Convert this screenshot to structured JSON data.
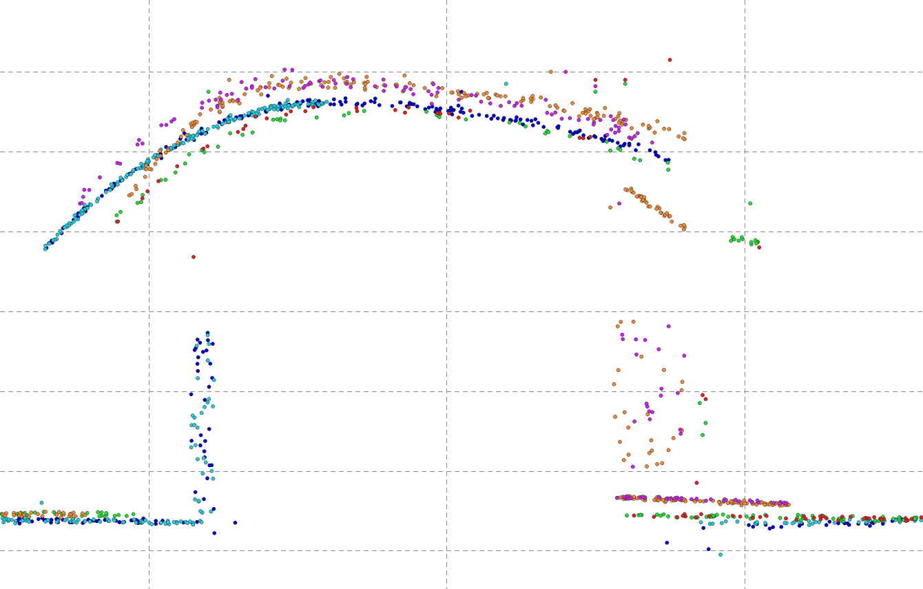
{
  "chart_data": {
    "type": "scatter",
    "title": "",
    "xlabel": "",
    "ylabel": "",
    "grid": true,
    "legend": "none",
    "xlim": [
      -1.0,
      2.1
    ],
    "ylim": [
      -0.48,
      6.9
    ],
    "x_gridlines": [
      -0.5,
      0.5,
      1.5
    ],
    "y_gridlines": [
      0,
      1,
      2,
      3,
      4,
      5,
      6
    ],
    "series": [
      {
        "color": "#0000cc",
        "clusters": [
          {
            "kind": "band",
            "x": [
              -1.0,
              -0.32
            ],
            "y_start": 0.38,
            "y_end": 0.36,
            "spread": 0.05,
            "count": 50
          },
          {
            "kind": "vertical",
            "x": [
              -0.36,
              -0.28
            ],
            "y": [
              0.45,
              2.75
            ],
            "count": 30
          },
          {
            "kind": "curve",
            "x": [
              -0.85,
              1.25
            ],
            "peak_x": 0.1,
            "peak_y": 5.6,
            "y_left": 3.78,
            "y_right": 4.9,
            "spread": 0.06,
            "count": 180
          },
          {
            "kind": "band",
            "x": [
              1.35,
              2.1
            ],
            "y_start": 0.28,
            "y_end": 0.36,
            "spread": 0.06,
            "count": 25
          },
          {
            "kind": "outliers",
            "points": [
              [
                -0.21,
                0.35
              ],
              [
                -0.28,
                0.22
              ],
              [
                1.24,
                0.1
              ],
              [
                1.38,
                0.02
              ],
              [
                -0.1,
                5.7
              ],
              [
                0.55,
                5.75
              ]
            ]
          }
        ]
      },
      {
        "color": "#22ccdd",
        "clusters": [
          {
            "kind": "band",
            "x": [
              -1.0,
              -0.32
            ],
            "y_start": 0.38,
            "y_end": 0.36,
            "spread": 0.05,
            "count": 70
          },
          {
            "kind": "vertical",
            "x": [
              -0.36,
              -0.28
            ],
            "y": [
              0.45,
              2.75
            ],
            "count": 30
          },
          {
            "kind": "curve",
            "x": [
              -0.85,
              0.1
            ],
            "peak_x": 0.1,
            "peak_y": 5.6,
            "y_left": 3.78,
            "y_right": 5.2,
            "spread": 0.05,
            "count": 160
          },
          {
            "kind": "band",
            "x": [
              1.35,
              2.1
            ],
            "y_start": 0.34,
            "y_end": 0.38,
            "spread": 0.05,
            "count": 40
          },
          {
            "kind": "outliers",
            "points": [
              [
                -0.86,
                0.6
              ],
              [
                0.7,
                5.85
              ],
              [
                1.42,
                -0.05
              ]
            ]
          }
        ]
      },
      {
        "color": "#22dd33",
        "clusters": [
          {
            "kind": "band",
            "x": [
              -1.0,
              -0.55
            ],
            "y_start": 0.47,
            "y_end": 0.45,
            "spread": 0.05,
            "count": 25
          },
          {
            "kind": "curve",
            "x": [
              -0.7,
              1.25
            ],
            "peak_x": 0.15,
            "peak_y": 5.5,
            "y_left": 3.8,
            "y_right": 4.82,
            "spread": 0.09,
            "count": 45
          },
          {
            "kind": "band",
            "x": [
              1.1,
              2.1
            ],
            "y_start": 0.45,
            "y_end": 0.39,
            "spread": 0.05,
            "count": 60
          },
          {
            "kind": "band",
            "x": [
              1.45,
              1.55
            ],
            "y_start": 3.92,
            "y_end": 3.86,
            "spread": 0.06,
            "count": 12
          },
          {
            "kind": "outliers",
            "points": [
              [
                1.36,
                1.45
              ],
              [
                1.37,
                1.6
              ],
              [
                1.35,
                1.85
              ],
              [
                1.52,
                4.35
              ],
              [
                1.0,
                5.75
              ],
              [
                1.1,
                5.85
              ],
              [
                -0.3,
                5.75
              ]
            ]
          }
        ]
      },
      {
        "color": "#dd2222",
        "clusters": [
          {
            "kind": "band",
            "x": [
              1.1,
              2.1
            ],
            "y_start": 0.44,
            "y_end": 0.4,
            "spread": 0.05,
            "count": 40
          },
          {
            "kind": "curve",
            "x": [
              -0.7,
              1.1
            ],
            "peak_x": 0.1,
            "peak_y": 5.55,
            "y_left": 3.7,
            "y_right": 5.0,
            "spread": 0.07,
            "count": 30
          },
          {
            "kind": "outliers",
            "points": [
              [
                1.36,
                1.95
              ],
              [
                1.37,
                1.9
              ],
              [
                1.34,
                0.85
              ],
              [
                1.55,
                3.8
              ],
              [
                -0.35,
                3.68
              ],
              [
                1.0,
                5.9
              ],
              [
                1.1,
                5.9
              ],
              [
                1.25,
                6.15
              ]
            ]
          }
        ]
      },
      {
        "color": "#ee8833",
        "clusters": [
          {
            "kind": "band",
            "x": [
              -1.0,
              -0.7
            ],
            "y_start": 0.46,
            "y_end": 0.44,
            "spread": 0.05,
            "count": 30
          },
          {
            "kind": "curve",
            "x": [
              -0.6,
              1.3
            ],
            "peak_x": 0.0,
            "peak_y": 5.85,
            "y_left": 4.3,
            "y_right": 5.2,
            "spread": 0.12,
            "count": 160
          },
          {
            "kind": "band",
            "x": [
              1.1,
              1.3
            ],
            "y_start": 4.55,
            "y_end": 4.05,
            "spread": 0.07,
            "count": 35
          },
          {
            "kind": "band",
            "x": [
              1.07,
              1.65
            ],
            "y_start": 0.67,
            "y_end": 0.58,
            "spread": 0.04,
            "count": 110
          },
          {
            "kind": "vertical",
            "x": [
              1.05,
              1.3
            ],
            "y": [
              1.05,
              2.9
            ],
            "count": 25
          },
          {
            "kind": "outliers",
            "points": [
              [
                0.85,
                6.0
              ],
              [
                -0.23,
                5.9
              ],
              [
                1.05,
                4.3
              ]
            ]
          }
        ]
      },
      {
        "color": "#cc22ee",
        "clusters": [
          {
            "kind": "curve",
            "x": [
              -0.75,
              1.2
            ],
            "peak_x": 0.0,
            "peak_y": 5.85,
            "y_left": 4.3,
            "y_right": 5.1,
            "spread": 0.13,
            "count": 100
          },
          {
            "kind": "band",
            "x": [
              1.07,
              1.65
            ],
            "y_start": 0.68,
            "y_end": 0.6,
            "spread": 0.04,
            "count": 35
          },
          {
            "kind": "vertical",
            "x": [
              1.08,
              1.3
            ],
            "y": [
              1.0,
              2.85
            ],
            "count": 20
          },
          {
            "kind": "outliers",
            "points": [
              [
                -0.2,
                5.65
              ],
              [
                1.08,
                4.35
              ],
              [
                0.9,
                6.0
              ],
              [
                1.0,
                5.82
              ],
              [
                0.45,
                5.6
              ]
            ]
          }
        ]
      }
    ]
  }
}
